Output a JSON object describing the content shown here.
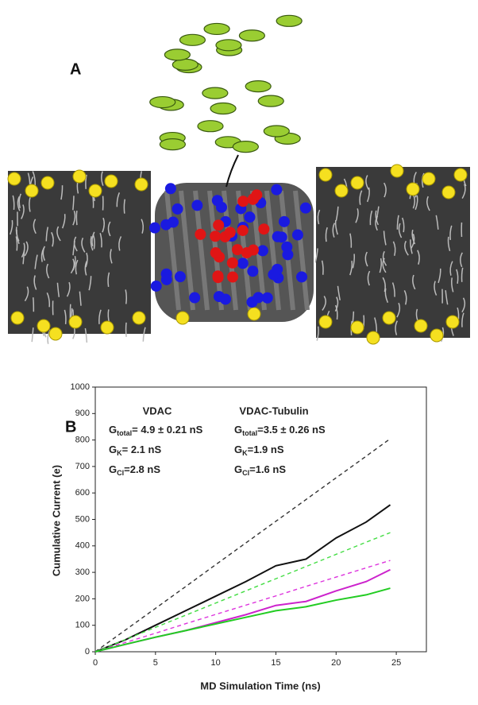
{
  "panel_a": {
    "label": "A"
  },
  "chart_data": {
    "type": "line",
    "panel_label": "B",
    "x_label": "MD Simulation Time (ns)",
    "y_label": "Cumulative Current (e)",
    "xlim": [
      0,
      27.5
    ],
    "ylim": [
      0,
      1000
    ],
    "xticks": [
      0,
      5,
      10,
      15,
      20,
      25
    ],
    "yticks": [
      0,
      100,
      200,
      300,
      400,
      500,
      600,
      700,
      800,
      900,
      1000
    ],
    "x": [
      0,
      2.5,
      5,
      7.5,
      10,
      12.5,
      15,
      17.5,
      20,
      22.5,
      24.5
    ],
    "series": [
      {
        "color": "#333333",
        "dashed": true,
        "values": [
          0,
          82,
          164,
          246,
          329,
          411,
          493,
          575,
          657,
          739,
          805
        ]
      },
      {
        "color": "#111111",
        "dashed": false,
        "values": [
          0,
          45,
          100,
          155,
          210,
          265,
          325,
          350,
          430,
          490,
          555
        ]
      },
      {
        "color": "#44dd44",
        "dashed": true,
        "values": [
          0,
          46,
          92,
          138,
          184,
          230,
          276,
          322,
          368,
          414,
          450
        ]
      },
      {
        "color": "#dd33dd",
        "dashed": true,
        "values": [
          0,
          35,
          70,
          106,
          141,
          176,
          211,
          247,
          282,
          317,
          345
        ]
      },
      {
        "color": "#cc22cc",
        "dashed": false,
        "values": [
          0,
          28,
          55,
          80,
          110,
          140,
          175,
          190,
          230,
          265,
          310
        ]
      },
      {
        "color": "#22cc22",
        "dashed": false,
        "values": [
          0,
          28,
          55,
          80,
          105,
          130,
          155,
          170,
          195,
          215,
          240
        ]
      }
    ],
    "annotations": [
      {
        "title": "VDAC",
        "lines": [
          {
            "symbol": "G",
            "sub": "total",
            "text": "= 4.9 ± 0.21 nS"
          },
          {
            "symbol": "G",
            "sub": "K",
            "text": "= 2.1 nS"
          },
          {
            "symbol": "G",
            "sub": "Cl",
            "text": "=2.8 nS"
          }
        ]
      },
      {
        "title": "VDAC-Tubulin",
        "lines": [
          {
            "symbol": "G",
            "sub": "total",
            "text": "=3.5 ± 0.26 nS"
          },
          {
            "symbol": "G",
            "sub": "K",
            "text": "=1.9 nS"
          },
          {
            "symbol": "G",
            "sub": "Cl",
            "text": "=1.6 nS"
          }
        ]
      }
    ]
  }
}
